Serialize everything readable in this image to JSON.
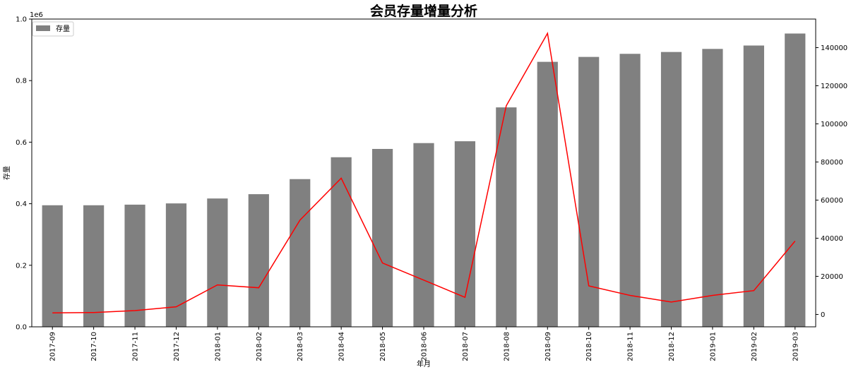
{
  "chart_data": {
    "type": "bar",
    "title": "会员存量增量分析",
    "xlabel": "年月",
    "ylabel": "存量",
    "y_offset_text": "1e6",
    "categories": [
      "2017-09",
      "2017-10",
      "2017-11",
      "2017-12",
      "2018-01",
      "2018-02",
      "2018-03",
      "2018-04",
      "2018-05",
      "2018-06",
      "2018-07",
      "2018-08",
      "2018-09",
      "2018-10",
      "2018-11",
      "2018-12",
      "2019-01",
      "2019-02",
      "2019-03"
    ],
    "series": [
      {
        "name": "存量",
        "type": "bar",
        "axis": "left",
        "color": "#808080",
        "values": [
          395000,
          395000,
          397000,
          401000,
          417000,
          431000,
          480000,
          551000,
          578000,
          597000,
          603000,
          713000,
          861000,
          877000,
          887000,
          893000,
          903000,
          914000,
          953000
        ]
      },
      {
        "type": "line",
        "axis": "right",
        "color": "#ff0000",
        "values": [
          800,
          1000,
          2000,
          4000,
          15500,
          14000,
          49500,
          71500,
          27000,
          18000,
          9000,
          109500,
          147500,
          15000,
          10000,
          6500,
          10000,
          12500,
          38500
        ]
      }
    ],
    "ylim": [
      0,
      1000000
    ],
    "y_ticks": [
      0,
      200000,
      400000,
      600000,
      800000,
      1000000
    ],
    "y_tick_labels": [
      "0.0",
      "0.2",
      "0.4",
      "0.6",
      "0.8",
      "1.0"
    ],
    "y2lim": [
      -6500,
      155000
    ],
    "y2_ticks": [
      0,
      20000,
      40000,
      60000,
      80000,
      100000,
      120000,
      140000
    ],
    "y2_tick_labels": [
      "0",
      "20000",
      "40000",
      "60000",
      "80000",
      "100000",
      "120000",
      "140000"
    ],
    "legend": {
      "position": "top-left",
      "entries": [
        "存量"
      ]
    },
    "grid": false
  }
}
